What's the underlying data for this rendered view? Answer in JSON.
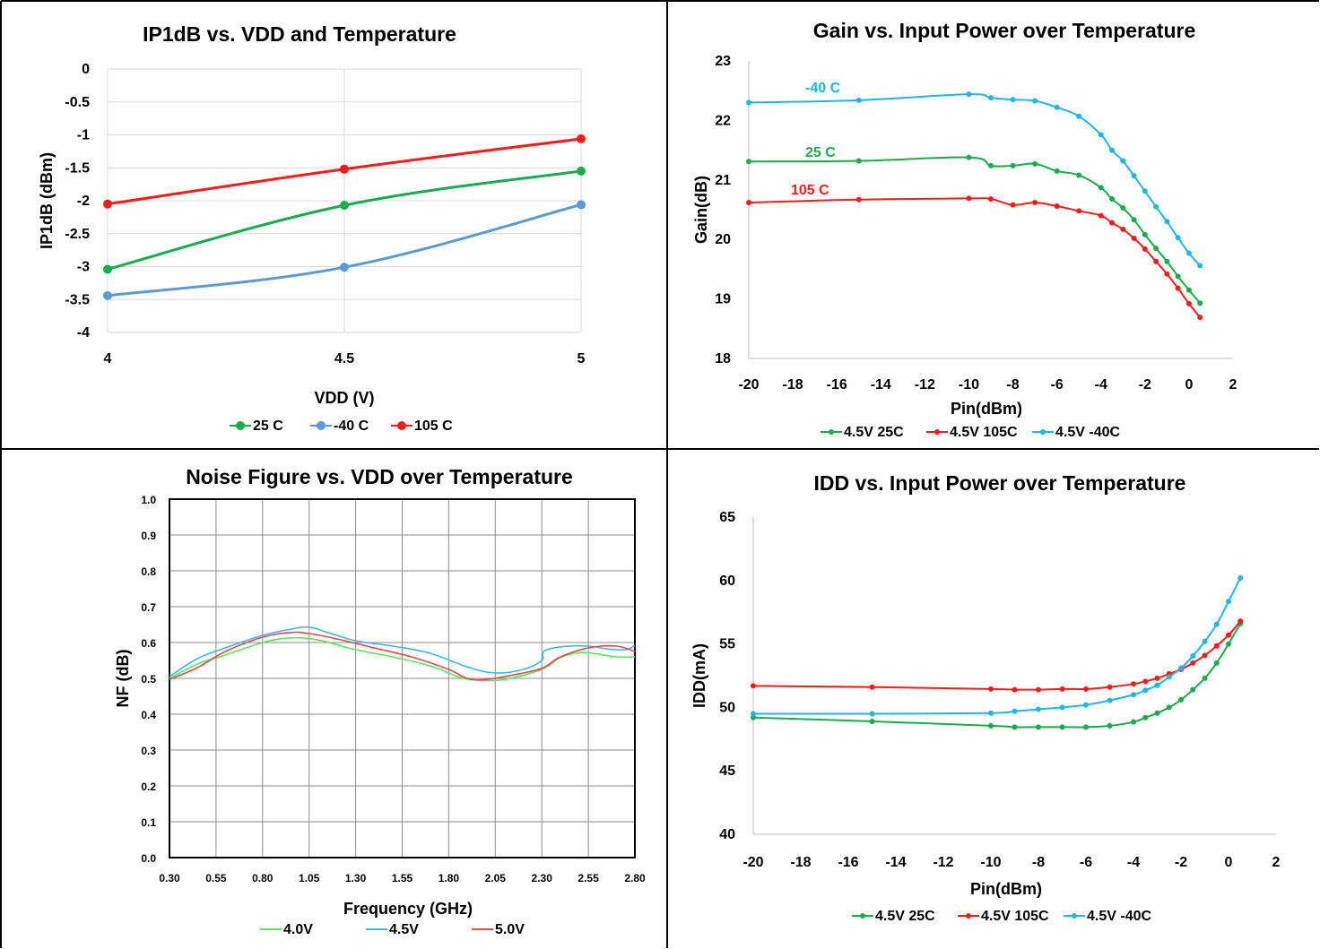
{
  "colors": {
    "green": "#1aab4b",
    "blue": "#5b9bd5",
    "red": "#ff1a1a",
    "cyan": "#1fb5e8",
    "nf_green": "#5de55d",
    "nf_blue": "#41b6ec",
    "nf_red": "#e8474d"
  },
  "chart_data": [
    {
      "type": "line",
      "title": "IP1dB vs. VDD and Temperature",
      "xlabel": "VDD (V)",
      "ylabel": "IP1dB (dBm)",
      "x": [
        4,
        4.5,
        5
      ],
      "x_ticks": [
        "4",
        "4.5",
        "5"
      ],
      "y_ticks": [
        "0",
        "-0.5",
        "-1",
        "-1.5",
        "-2",
        "-2.5",
        "-3",
        "-3.5",
        "-4"
      ],
      "ylim": [
        -4,
        0
      ],
      "grid": true,
      "legend_position": "bottom",
      "series": [
        {
          "name": "25 C",
          "color": "#1aab4b",
          "values": [
            -3.04,
            -2.07,
            -1.55
          ]
        },
        {
          "name": "-40 C",
          "color": "#5b9bd5",
          "values": [
            -3.44,
            -3.01,
            -2.06
          ]
        },
        {
          "name": "105 C",
          "color": "#ff1a1a",
          "values": [
            -2.05,
            -1.52,
            -1.06
          ]
        }
      ]
    },
    {
      "type": "line",
      "title": "Gain vs. Input Power over Temperature",
      "xlabel": "Pin(dBm)",
      "ylabel": "Gain(dB)",
      "xlim": [
        -20,
        2
      ],
      "ylim": [
        18,
        23
      ],
      "x_ticks": [
        "-20",
        "-18",
        "-16",
        "-14",
        "-12",
        "-10",
        "-8",
        "-6",
        "-4",
        "-2",
        "0",
        "2"
      ],
      "y_ticks": [
        "18",
        "19",
        "20",
        "21",
        "22",
        "23"
      ],
      "grid": false,
      "legend_position": "bottom",
      "annotations": [
        {
          "text": "-40 C",
          "color": "#1fb5e8"
        },
        {
          "text": "25 C",
          "color": "#1aab4b"
        },
        {
          "text": "105 C",
          "color": "#ff1a1a"
        }
      ],
      "series": [
        {
          "name": "4.5V 25C",
          "color": "#1aab4b",
          "x": [
            -20,
            -15,
            -10,
            -9,
            -8,
            -7,
            -6,
            -5,
            -4,
            -3.5,
            -3,
            -2.5,
            -2,
            -1.5,
            -1,
            -0.5,
            0,
            0.5
          ],
          "values": [
            21.31,
            21.32,
            21.38,
            21.24,
            21.24,
            21.27,
            21.15,
            21.08,
            20.87,
            20.68,
            20.53,
            20.33,
            20.08,
            19.85,
            19.63,
            19.38,
            19.15,
            18.93
          ]
        },
        {
          "name": "4.5V 105C",
          "color": "#ff1a1a",
          "x": [
            -20,
            -15,
            -10,
            -9,
            -8,
            -7,
            -6,
            -5,
            -4,
            -3.5,
            -3,
            -2.5,
            -2,
            -1.5,
            -1,
            -0.5,
            0,
            0.5
          ],
          "values": [
            20.62,
            20.67,
            20.69,
            20.68,
            20.58,
            20.62,
            20.56,
            20.48,
            20.4,
            20.28,
            20.17,
            20.02,
            19.84,
            19.63,
            19.42,
            19.18,
            18.92,
            18.69
          ]
        },
        {
          "name": "4.5V -40C",
          "color": "#1fb5e8",
          "x": [
            -20,
            -15,
            -10,
            -9,
            -8,
            -7,
            -6,
            -5,
            -4,
            -3.5,
            -3,
            -2.5,
            -2,
            -1.5,
            -1,
            -0.5,
            0,
            0.5
          ],
          "values": [
            22.3,
            22.34,
            22.44,
            22.38,
            22.35,
            22.33,
            22.22,
            22.07,
            21.76,
            21.5,
            21.32,
            21.07,
            20.81,
            20.55,
            20.3,
            20.03,
            19.77,
            19.56
          ]
        }
      ]
    },
    {
      "type": "line",
      "title": "Noise Figure vs. VDD over Temperature",
      "xlabel": "Frequency (GHz)",
      "ylabel": "NF (dB)",
      "xlim": [
        0.3,
        2.8
      ],
      "ylim": [
        0,
        1
      ],
      "x_ticks": [
        "0.30",
        "0.55",
        "0.80",
        "1.05",
        "1.30",
        "1.55",
        "1.80",
        "2.05",
        "2.30",
        "2.55",
        "2.80"
      ],
      "y_ticks": [
        "0.0",
        "0.1",
        "0.2",
        "0.3",
        "0.4",
        "0.5",
        "0.6",
        "0.7",
        "0.8",
        "0.9",
        "1.0"
      ],
      "grid": true,
      "legend_position": "bottom",
      "series": [
        {
          "name": "4.0V",
          "color": "#5de55d",
          "x": [
            0.3,
            0.45,
            0.6,
            0.8,
            0.95,
            1.1,
            1.3,
            1.5,
            1.7,
            1.85,
            1.95,
            2.1,
            2.3,
            2.4,
            2.5,
            2.6,
            2.7,
            2.8
          ],
          "values": [
            0.5,
            0.54,
            0.565,
            0.6,
            0.613,
            0.607,
            0.58,
            0.56,
            0.535,
            0.505,
            0.495,
            0.497,
            0.525,
            0.558,
            0.572,
            0.568,
            0.56,
            0.56
          ]
        },
        {
          "name": "4.5V",
          "color": "#41b6ec",
          "x": [
            0.3,
            0.45,
            0.6,
            0.8,
            0.95,
            1.05,
            1.15,
            1.3,
            1.5,
            1.7,
            1.9,
            2.05,
            2.2,
            2.3,
            2.31,
            2.4,
            2.55,
            2.65,
            2.75,
            2.8
          ],
          "values": [
            0.505,
            0.555,
            0.585,
            0.62,
            0.637,
            0.643,
            0.628,
            0.605,
            0.59,
            0.57,
            0.532,
            0.515,
            0.525,
            0.55,
            0.575,
            0.588,
            0.59,
            0.582,
            0.58,
            0.592
          ]
        },
        {
          "name": "5.0V",
          "color": "#e8474d",
          "x": [
            0.3,
            0.45,
            0.6,
            0.8,
            0.95,
            1.05,
            1.2,
            1.4,
            1.6,
            1.8,
            1.9,
            2.0,
            2.15,
            2.3,
            2.4,
            2.55,
            2.7,
            2.8
          ],
          "values": [
            0.497,
            0.53,
            0.575,
            0.615,
            0.628,
            0.625,
            0.61,
            0.585,
            0.56,
            0.525,
            0.5,
            0.497,
            0.51,
            0.528,
            0.56,
            0.585,
            0.59,
            0.575
          ]
        }
      ]
    },
    {
      "type": "line",
      "title": "IDD vs. Input Power over Temperature",
      "xlabel": "Pin(dBm)",
      "ylabel": "IDD(mA)",
      "xlim": [
        -20,
        2
      ],
      "ylim": [
        40,
        65
      ],
      "x_ticks": [
        "-20",
        "-18",
        "-16",
        "-14",
        "-12",
        "-10",
        "-8",
        "-6",
        "-4",
        "-2",
        "0",
        "2"
      ],
      "y_ticks": [
        "40",
        "45",
        "50",
        "55",
        "60",
        "65"
      ],
      "grid": false,
      "legend_position": "bottom",
      "series": [
        {
          "name": "4.5V 25C",
          "color": "#1aab4b",
          "x": [
            -20,
            -15,
            -10,
            -9,
            -8,
            -7,
            -6,
            -5,
            -4,
            -3.5,
            -3,
            -2.5,
            -2,
            -1.5,
            -1,
            -0.5,
            0,
            0.5
          ],
          "values": [
            49.2,
            48.9,
            48.55,
            48.45,
            48.45,
            48.45,
            48.45,
            48.55,
            48.85,
            49.2,
            49.55,
            50.0,
            50.6,
            51.4,
            52.3,
            53.5,
            55.0,
            56.6
          ]
        },
        {
          "name": "4.5V 105C",
          "color": "#ff1a1a",
          "x": [
            -20,
            -15,
            -10,
            -9,
            -8,
            -7,
            -6,
            -5,
            -4,
            -3.5,
            -3,
            -2.5,
            -2,
            -1.5,
            -1,
            -0.5,
            0,
            0.5
          ],
          "values": [
            51.7,
            51.6,
            51.45,
            51.4,
            51.4,
            51.45,
            51.45,
            51.6,
            51.85,
            52.05,
            52.3,
            52.65,
            53.0,
            53.5,
            54.1,
            54.85,
            55.7,
            56.8
          ]
        },
        {
          "name": "4.5V -40C",
          "color": "#1fb5e8",
          "x": [
            -20,
            -15,
            -10,
            -9,
            -8,
            -7,
            -6,
            -5,
            -4,
            -3.5,
            -3,
            -2.5,
            -2,
            -1.5,
            -1,
            -0.5,
            0,
            0.5
          ],
          "values": [
            49.5,
            49.5,
            49.55,
            49.7,
            49.85,
            50.0,
            50.2,
            50.55,
            51.0,
            51.35,
            51.75,
            52.4,
            53.1,
            54.05,
            55.2,
            56.55,
            58.35,
            60.2
          ]
        }
      ]
    }
  ]
}
